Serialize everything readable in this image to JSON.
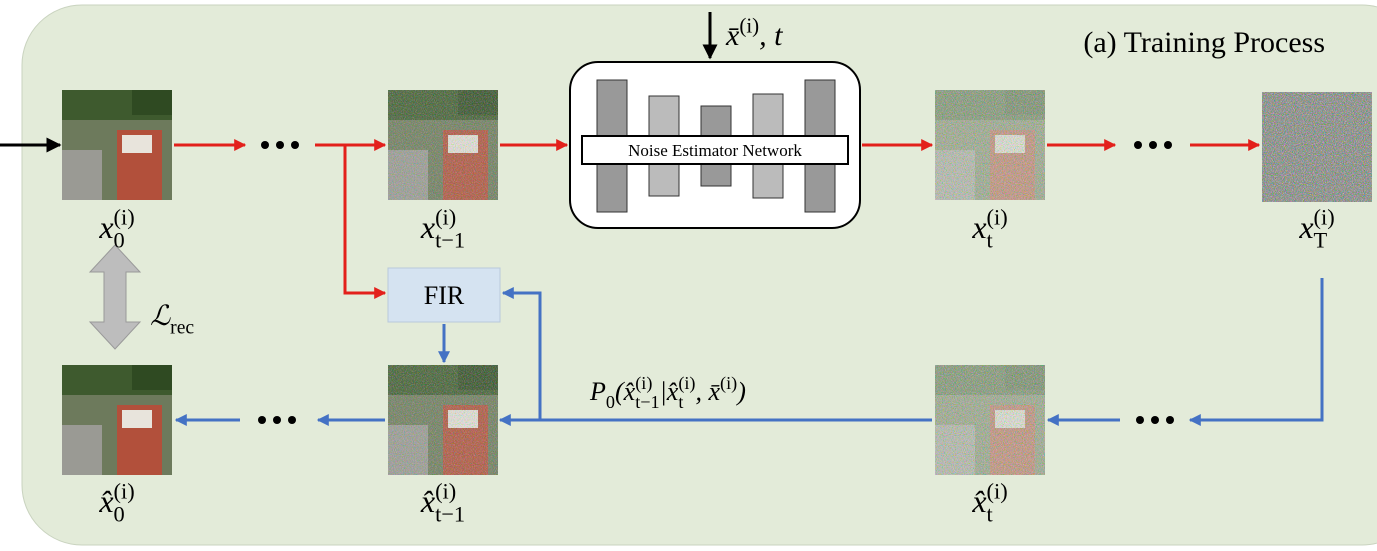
{
  "title": "(a) Training Process",
  "network": {
    "label": "Noise Estimator Network"
  },
  "fir": {
    "label": "FIR"
  },
  "loss": [
    {
      "base": "ℒ"
    },
    {
      "sub": "rec"
    }
  ],
  "condition": [
    {
      "base": "x̄"
    },
    {
      "sup": "(i)"
    },
    {
      "base": ", t"
    }
  ],
  "reverse_step": [
    {
      "base": "P"
    },
    {
      "sub": "0"
    },
    {
      "base": " ("
    },
    {
      "base": "x̂"
    },
    {
      "sup": "(i)"
    },
    {
      "sub": "t−1"
    },
    {
      "base": " | "
    },
    {
      "base": "x̂"
    },
    {
      "sup": "(i)"
    },
    {
      "sub": "t"
    },
    {
      "base": ", x̄"
    },
    {
      "sup": "(i)"
    },
    {
      "base": ")"
    }
  ],
  "nodes": [
    {
      "label": [
        {
          "base": "x"
        },
        {
          "sup": "(i)"
        },
        {
          "sub": "0"
        }
      ]
    },
    {
      "label": [
        {
          "base": "x"
        },
        {
          "sup": "(i)"
        },
        {
          "sub": "t−1"
        }
      ]
    },
    {
      "label": [
        {
          "base": "x"
        },
        {
          "sup": "(i)"
        },
        {
          "sub": "t"
        }
      ]
    },
    {
      "label": [
        {
          "base": "x"
        },
        {
          "sup": "(i)"
        },
        {
          "sub": "T"
        }
      ]
    },
    {
      "label": [
        {
          "base": "x̂"
        },
        {
          "sup": "(i)"
        },
        {
          "sub": "0"
        }
      ]
    },
    {
      "label": [
        {
          "base": "x̂"
        },
        {
          "sup": "(i)"
        },
        {
          "sub": "t−1"
        }
      ]
    },
    {
      "label": [
        {
          "base": "x̂"
        },
        {
          "sup": "(i)"
        },
        {
          "sub": "t"
        }
      ]
    }
  ]
}
